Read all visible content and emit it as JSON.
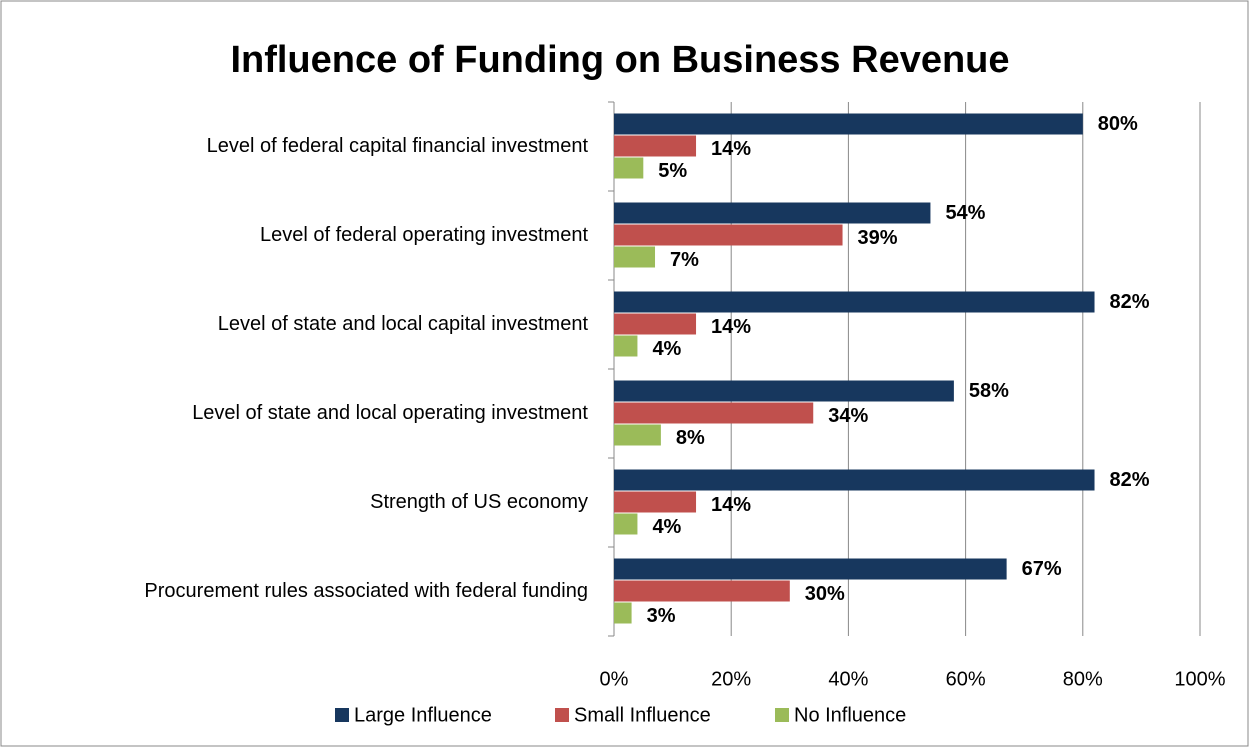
{
  "chart_data": {
    "type": "hbar",
    "title": "Influence of Funding on Business Revenue",
    "categories": [
      "Level of federal capital financial investment",
      "Level of federal operating investment",
      "Level of state and local capital investment",
      "Level of state and local operating investment",
      "Strength of US economy",
      "Procurement rules associated with federal funding"
    ],
    "series": [
      {
        "name": "Large Influence",
        "color": "#17375e",
        "values": [
          80,
          54,
          82,
          58,
          82,
          67
        ],
        "value_labels": [
          "80%",
          "54%",
          "82%",
          "58%",
          "82%",
          "67%"
        ]
      },
      {
        "name": "Small Influence",
        "color": "#c0504d",
        "values": [
          14,
          39,
          14,
          34,
          14,
          30
        ],
        "value_labels": [
          "14%",
          "39%",
          "14%",
          "34%",
          "14%",
          "30%"
        ]
      },
      {
        "name": "No Influence",
        "color": "#9bbb59",
        "values": [
          5,
          7,
          4,
          8,
          4,
          3
        ],
        "value_labels": [
          "5%",
          "7%",
          "4%",
          "8%",
          "4%",
          "3%"
        ]
      }
    ],
    "xlim": [
      0,
      100
    ],
    "xticks": [
      {
        "value": 0,
        "label": "0%"
      },
      {
        "value": 20,
        "label": "20%"
      },
      {
        "value": 40,
        "label": "40%"
      },
      {
        "value": 60,
        "label": "60%"
      },
      {
        "value": 80,
        "label": "80%"
      },
      {
        "value": 100,
        "label": "100%"
      }
    ],
    "grid": true,
    "legend": "bottom"
  }
}
